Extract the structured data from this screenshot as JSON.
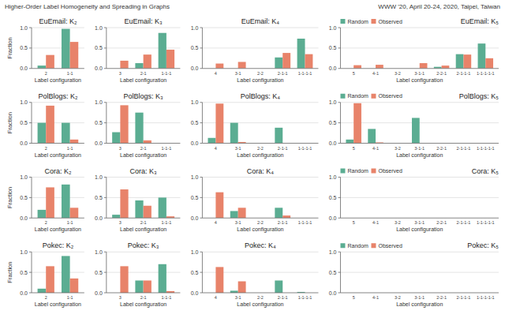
{
  "title": "Higher-Order Label Homogeneity and Spreading in Graphs",
  "subtitle": "WWW '20, April 20-24, 2020, Taipei, Taiwan",
  "chart_data": [
    {
      "type": "bar",
      "title": "EuEmail: K₂",
      "x_label": "Label configuration",
      "y_label": "Fraction",
      "categories": [
        "2",
        "1-1"
      ],
      "series": [
        {
          "color": "#5BAD92",
          "values": [
            0.07,
            0.97
          ]
        },
        {
          "color": "#E8836A",
          "values": [
            0.33,
            0.65
          ]
        }
      ],
      "ylim": [
        0,
        1.0
      ],
      "yticks": [
        {
          "value": 0,
          "label": "0.0"
        },
        0.5,
        {
          "value": 1.0,
          "label": "1.0"
        }
      ],
      "grid": true
    },
    {
      "type": "bar",
      "title": "EuEmail: K₃",
      "x_label": "Label configuration",
      "categories": [
        "3",
        "2-1",
        "1-1-1"
      ],
      "series": [
        {
          "color": "#5BAD92",
          "values": [
            0.0,
            0.13,
            0.87
          ]
        },
        {
          "color": "#E8836A",
          "values": [
            0.19,
            0.34,
            0.46
          ]
        }
      ],
      "ylim": [
        0,
        1.0
      ],
      "yticks": [
        {
          "value": 0,
          "label": "0.0"
        },
        0.5,
        {
          "value": 1.0,
          "label": "1.0"
        }
      ],
      "grid": true
    },
    {
      "type": "bar",
      "title": "EuEmail: K₄",
      "x_label": "Label configuration",
      "categories": [
        "4",
        "3-1",
        "2-2",
        "2-1-1",
        "1-1-1-1"
      ],
      "series": [
        {
          "color": "#5BAD92",
          "values": [
            0.0,
            0.0,
            0.0,
            0.27,
            0.73
          ]
        },
        {
          "color": "#E8836A",
          "values": [
            0.12,
            0.16,
            0.0,
            0.38,
            0.35
          ]
        }
      ],
      "ylim": [
        0,
        1.0
      ],
      "yticks": [
        {
          "value": 0,
          "label": "0.0"
        },
        0.5,
        {
          "value": 1.0,
          "label": "1.0"
        }
      ],
      "grid": true
    },
    {
      "type": "bar",
      "title": "EuEmail: K₅",
      "x_label": "Label configuration",
      "categories": [
        "5",
        "4-1",
        "3-2",
        "3-1-1",
        "2-2-1",
        "2-1-1-1",
        "1-1-1-1-1"
      ],
      "series": [
        {
          "name": "Random",
          "color": "#5BAD92",
          "values": [
            0.0,
            0.0,
            0.0,
            0.0,
            0.04,
            0.35,
            0.61
          ]
        },
        {
          "name": "Observed",
          "color": "#E8836A",
          "values": [
            0.08,
            0.09,
            0.0,
            0.13,
            0.07,
            0.34,
            0.25
          ]
        }
      ],
      "ylim": [
        0,
        1.0
      ],
      "yticks": [
        {
          "value": 0,
          "label": "0.0"
        },
        0.5,
        {
          "value": 1.0,
          "label": "1.0"
        }
      ],
      "grid": true,
      "legend": "upper left"
    },
    {
      "type": "bar",
      "title": "PolBlogs: K₂",
      "x_label": "Label configuration",
      "y_label": "Fraction",
      "categories": [
        "2",
        "1-1"
      ],
      "series": [
        {
          "color": "#5BAD92",
          "values": [
            0.5,
            0.5
          ]
        },
        {
          "color": "#E8836A",
          "values": [
            0.92,
            0.09
          ]
        }
      ],
      "ylim": [
        0,
        1.0
      ],
      "yticks": [
        {
          "value": 0,
          "label": "0.0"
        },
        0.5,
        {
          "value": 1.0,
          "label": "1.0"
        }
      ],
      "grid": true
    },
    {
      "type": "bar",
      "title": "PolBlogs: K₃",
      "x_label": "Label configuration",
      "categories": [
        "3",
        "2-1",
        "1-1-1"
      ],
      "series": [
        {
          "color": "#5BAD92",
          "values": [
            0.27,
            0.75,
            0.0
          ]
        },
        {
          "color": "#E8836A",
          "values": [
            0.93,
            0.07,
            0.0
          ]
        }
      ],
      "ylim": [
        0,
        1.0
      ],
      "yticks": [
        {
          "value": 0,
          "label": "0.0"
        },
        0.5,
        {
          "value": 1.0,
          "label": "1.0"
        }
      ],
      "grid": true
    },
    {
      "type": "bar",
      "title": "PolBlogs: K₄",
      "x_label": "Label configuration",
      "categories": [
        "4",
        "3-1",
        "2-2",
        "2-1-1",
        "1-1-1-1"
      ],
      "series": [
        {
          "color": "#5BAD92",
          "values": [
            0.13,
            0.5,
            0.0,
            0.38,
            0.0
          ]
        },
        {
          "color": "#E8836A",
          "values": [
            0.97,
            0.03,
            0.0,
            0.0,
            0.0
          ]
        }
      ],
      "ylim": [
        0,
        1.0
      ],
      "yticks": [
        {
          "value": 0,
          "label": "0.0"
        },
        0.5,
        {
          "value": 1.0,
          "label": "1.0"
        }
      ],
      "grid": true
    },
    {
      "type": "bar",
      "title": "PolBlogs: K₅",
      "x_label": "Label configuration",
      "categories": [
        "5",
        "4-1",
        "3-2",
        "3-1-1",
        "2-2-1",
        "2-1-1-1",
        "1-1-1-1-1"
      ],
      "series": [
        {
          "name": "Random",
          "color": "#5BAD92",
          "values": [
            0.09,
            0.35,
            0.0,
            0.62,
            0.0,
            0.0,
            0.0
          ]
        },
        {
          "name": "Observed",
          "color": "#E8836A",
          "values": [
            0.98,
            0.02,
            0.0,
            0.0,
            0.0,
            0.0,
            0.0
          ]
        }
      ],
      "ylim": [
        0,
        1.0
      ],
      "yticks": [
        {
          "value": 0,
          "label": "0.0"
        },
        0.5,
        {
          "value": 1.0,
          "label": "1.0"
        }
      ],
      "grid": true,
      "legend": "upper left"
    },
    {
      "type": "bar",
      "title": "Cora: K₂",
      "x_label": "Label configuration",
      "y_label": "Fraction",
      "categories": [
        "2",
        "1-1"
      ],
      "series": [
        {
          "color": "#5BAD92",
          "values": [
            0.2,
            0.82
          ]
        },
        {
          "color": "#E8836A",
          "values": [
            0.75,
            0.25
          ]
        }
      ],
      "ylim": [
        0,
        1.0
      ],
      "yticks": [
        {
          "value": 0,
          "label": "0.0"
        },
        0.5,
        {
          "value": 1.0,
          "label": "1.0"
        }
      ],
      "grid": true
    },
    {
      "type": "bar",
      "title": "Cora: K₃",
      "x_label": "Label configuration",
      "categories": [
        "3",
        "2-1",
        "1-1-1"
      ],
      "series": [
        {
          "color": "#5BAD92",
          "values": [
            0.08,
            0.43,
            0.5
          ]
        },
        {
          "color": "#E8836A",
          "values": [
            0.7,
            0.3,
            0.04
          ]
        }
      ],
      "ylim": [
        0,
        1.0
      ],
      "yticks": [
        {
          "value": 0,
          "label": "0.0"
        },
        0.5,
        {
          "value": 1.0,
          "label": "1.0"
        }
      ],
      "grid": true
    },
    {
      "type": "bar",
      "title": "Cora: K₄",
      "x_label": "Label configuration",
      "categories": [
        "4",
        "3-1",
        "2-2",
        "2-1-1",
        "1-1-1-1"
      ],
      "series": [
        {
          "color": "#5BAD92",
          "values": [
            0.0,
            0.17,
            0.0,
            0.25,
            0.0
          ]
        },
        {
          "color": "#E8836A",
          "values": [
            0.63,
            0.25,
            0.0,
            0.06,
            0.0
          ]
        }
      ],
      "ylim": [
        0,
        1.0
      ],
      "yticks": [
        {
          "value": 0,
          "label": "0.0"
        },
        0.5,
        {
          "value": 1.0,
          "label": "1.0"
        }
      ],
      "grid": true
    },
    {
      "type": "bar",
      "title": "Cora: K₅",
      "x_label": "Label configuration",
      "categories": [
        "5",
        "4-1",
        "3-2",
        "3-1-1",
        "2-2-1",
        "2-1-1-1",
        "1-1-1-1-1"
      ],
      "series": [
        {
          "name": "Random",
          "color": "#5BAD92",
          "values": [
            0.0,
            0.0,
            0.0,
            0.0,
            0.0,
            0.0,
            0.0
          ]
        },
        {
          "name": "Observed",
          "color": "#E8836A",
          "values": [
            0.0,
            0.0,
            0.0,
            0.0,
            0.0,
            0.0,
            0.0
          ]
        }
      ],
      "ylim": [
        0,
        1.0
      ],
      "yticks": [
        {
          "value": 0,
          "label": "0.0"
        },
        0.5,
        {
          "value": 1.0,
          "label": "1.0"
        }
      ],
      "grid": true,
      "legend": "upper left"
    },
    {
      "type": "bar",
      "title": "Pokec: K₂",
      "x_label": "Label configuration",
      "y_label": "Fraction",
      "categories": [
        "2",
        "1-1"
      ],
      "series": [
        {
          "color": "#5BAD92",
          "values": [
            0.1,
            0.9
          ]
        },
        {
          "color": "#E8836A",
          "values": [
            0.65,
            0.35
          ]
        }
      ],
      "ylim": [
        0,
        1.0
      ],
      "yticks": [
        {
          "value": 0,
          "label": "0.0"
        },
        0.5,
        {
          "value": 1.0,
          "label": "1.0"
        }
      ],
      "grid": true
    },
    {
      "type": "bar",
      "title": "Pokec: K₃",
      "x_label": "Label configuration",
      "categories": [
        "3",
        "2-1",
        "1-1-1"
      ],
      "series": [
        {
          "color": "#5BAD92",
          "values": [
            0.0,
            0.3,
            0.7
          ]
        },
        {
          "color": "#E8836A",
          "values": [
            0.65,
            0.3,
            0.04
          ]
        }
      ],
      "ylim": [
        0,
        1.0
      ],
      "yticks": [
        {
          "value": 0,
          "label": "0.0"
        },
        0.5,
        {
          "value": 1.0,
          "label": "1.0"
        }
      ],
      "grid": true
    },
    {
      "type": "bar",
      "title": "Pokec: K₄",
      "x_label": "Label configuration",
      "categories": [
        "4",
        "3-1",
        "2-2",
        "2-1-1",
        "1-1-1-1"
      ],
      "series": [
        {
          "color": "#5BAD92",
          "values": [
            0.0,
            0.05,
            0.0,
            0.3,
            0.02
          ]
        },
        {
          "color": "#E8836A",
          "values": [
            0.63,
            0.28,
            0.0,
            0.0,
            0.0
          ]
        }
      ],
      "ylim": [
        0,
        1.0
      ],
      "yticks": [
        {
          "value": 0,
          "label": "0.0"
        },
        0.5,
        {
          "value": 1.0,
          "label": "1.0"
        }
      ],
      "grid": true
    },
    {
      "type": "bar",
      "title": "Pokec: K₅",
      "x_label": "Label configuration",
      "categories": [
        "5",
        "4-1",
        "3-2",
        "3-1-1",
        "2-2-1",
        "2-1-1-1",
        "1-1-1-1-1"
      ],
      "series": [
        {
          "name": "Random",
          "color": "#5BAD92",
          "values": [
            0.0,
            0.0,
            0.0,
            0.0,
            0.0,
            0.0,
            0.0
          ]
        },
        {
          "name": "Observed",
          "color": "#E8836A",
          "values": [
            0.0,
            0.0,
            0.0,
            0.0,
            0.0,
            0.0,
            0.0
          ]
        }
      ],
      "ylim": [
        0,
        1.0
      ],
      "yticks": [
        {
          "value": 0,
          "label": "0.0"
        },
        0.5,
        {
          "value": 1.0,
          "label": "1.0"
        }
      ],
      "grid": true,
      "legend": "upper left"
    }
  ]
}
